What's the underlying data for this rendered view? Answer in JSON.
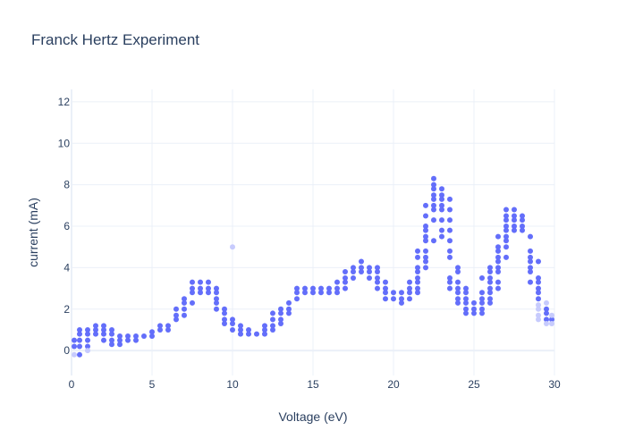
{
  "chart_data": {
    "type": "scatter",
    "title": "Franck Hertz Experiment",
    "xlabel": "Voltage (eV)",
    "ylabel": "current (mA)",
    "xlim": [
      0,
      30
    ],
    "ylim": [
      -1.2,
      12.6
    ],
    "xticks": [
      0,
      5,
      10,
      15,
      20,
      25,
      30
    ],
    "xtick_labels": [
      "0",
      "5",
      "10",
      "15",
      "20",
      "25",
      "30"
    ],
    "yticks": [
      0,
      2,
      4,
      6,
      8,
      10,
      12
    ],
    "ytick_labels": [
      "0",
      "2",
      "4",
      "6",
      "8",
      "10",
      "12"
    ],
    "grid": true,
    "legend": "none",
    "marker_color": "#636efa",
    "faded_marker_color": "#c7cbfd",
    "series": [
      {
        "points": [
          [
            0,
            0.2
          ],
          [
            0,
            0.5
          ],
          [
            0.5,
            -0.2
          ],
          [
            0.5,
            0.2
          ],
          [
            0.5,
            0.5
          ],
          [
            0.5,
            0.8
          ],
          [
            0.5,
            1.0
          ],
          [
            1,
            0.2
          ],
          [
            1,
            0.5
          ],
          [
            1,
            0.8
          ],
          [
            1,
            1.0
          ],
          [
            1.5,
            0.8
          ],
          [
            1.5,
            1.0
          ],
          [
            1.5,
            1.2
          ],
          [
            2,
            0.5
          ],
          [
            2,
            0.8
          ],
          [
            2,
            1.0
          ],
          [
            2,
            1.2
          ],
          [
            2.5,
            0.3
          ],
          [
            2.5,
            0.5
          ],
          [
            2.5,
            0.8
          ],
          [
            2.5,
            1.0
          ],
          [
            3,
            0.3
          ],
          [
            3,
            0.5
          ],
          [
            3,
            0.7
          ],
          [
            3.5,
            0.5
          ],
          [
            3.5,
            0.7
          ],
          [
            4,
            0.5
          ],
          [
            4,
            0.7
          ],
          [
            4.5,
            0.7
          ],
          [
            5,
            0.7
          ],
          [
            5,
            0.9
          ],
          [
            5.5,
            1.0
          ],
          [
            5.5,
            1.2
          ],
          [
            6,
            1.0
          ],
          [
            6,
            1.2
          ],
          [
            6.5,
            1.5
          ],
          [
            6.5,
            1.7
          ],
          [
            6.5,
            2.0
          ],
          [
            7,
            1.7
          ],
          [
            7,
            2.0
          ],
          [
            7,
            2.3
          ],
          [
            7,
            2.5
          ],
          [
            7.5,
            2.3
          ],
          [
            7.5,
            2.8
          ],
          [
            7.5,
            3.0
          ],
          [
            7.5,
            3.3
          ],
          [
            8,
            2.8
          ],
          [
            8,
            3.0
          ],
          [
            8,
            3.3
          ],
          [
            8.5,
            2.8
          ],
          [
            8.5,
            3.0
          ],
          [
            8.5,
            3.3
          ],
          [
            9,
            2.0
          ],
          [
            9,
            2.3
          ],
          [
            9,
            2.5
          ],
          [
            9,
            2.8
          ],
          [
            9,
            3.0
          ],
          [
            9.5,
            1.3
          ],
          [
            9.5,
            1.5
          ],
          [
            9.5,
            1.8
          ],
          [
            9.5,
            2.0
          ],
          [
            10,
            1.0
          ],
          [
            10,
            1.3
          ],
          [
            10,
            1.5
          ],
          [
            10.5,
            0.8
          ],
          [
            10.5,
            1.0
          ],
          [
            10.5,
            1.2
          ],
          [
            11,
            0.8
          ],
          [
            11,
            1.0
          ],
          [
            11.5,
            0.8
          ],
          [
            12,
            0.8
          ],
          [
            12,
            1.0
          ],
          [
            12,
            1.2
          ],
          [
            12.5,
            1.0
          ],
          [
            12.5,
            1.2
          ],
          [
            12.5,
            1.5
          ],
          [
            12.5,
            1.8
          ],
          [
            13,
            1.3
          ],
          [
            13,
            1.5
          ],
          [
            13,
            1.8
          ],
          [
            13,
            2.0
          ],
          [
            13.5,
            1.8
          ],
          [
            13.5,
            2.0
          ],
          [
            13.5,
            2.3
          ],
          [
            14,
            2.5
          ],
          [
            14,
            2.8
          ],
          [
            14,
            3.0
          ],
          [
            14.5,
            2.8
          ],
          [
            14.5,
            3.0
          ],
          [
            15,
            2.8
          ],
          [
            15,
            3.0
          ],
          [
            15.5,
            2.8
          ],
          [
            15.5,
            3.0
          ],
          [
            16,
            2.8
          ],
          [
            16,
            3.0
          ],
          [
            16.5,
            2.8
          ],
          [
            16.5,
            3.0
          ],
          [
            16.5,
            3.3
          ],
          [
            17,
            3.0
          ],
          [
            17,
            3.3
          ],
          [
            17,
            3.5
          ],
          [
            17,
            3.8
          ],
          [
            17.5,
            3.5
          ],
          [
            17.5,
            3.8
          ],
          [
            17.5,
            4.0
          ],
          [
            18,
            3.8
          ],
          [
            18,
            4.0
          ],
          [
            18,
            4.3
          ],
          [
            18.5,
            3.5
          ],
          [
            18.5,
            3.8
          ],
          [
            18.5,
            4.0
          ],
          [
            19,
            3.0
          ],
          [
            19,
            3.3
          ],
          [
            19,
            3.5
          ],
          [
            19,
            3.8
          ],
          [
            19,
            4.0
          ],
          [
            19.5,
            2.5
          ],
          [
            19.5,
            2.8
          ],
          [
            19.5,
            3.0
          ],
          [
            19.5,
            3.3
          ],
          [
            20,
            2.5
          ],
          [
            20,
            2.8
          ],
          [
            20.5,
            2.3
          ],
          [
            20.5,
            2.5
          ],
          [
            20.5,
            2.8
          ],
          [
            21,
            2.5
          ],
          [
            21,
            2.8
          ],
          [
            21,
            3.0
          ],
          [
            21,
            3.3
          ],
          [
            21.5,
            2.8
          ],
          [
            21.5,
            3.0
          ],
          [
            21.5,
            3.3
          ],
          [
            21.5,
            3.5
          ],
          [
            21.5,
            3.8
          ],
          [
            21.5,
            4.0
          ],
          [
            21.5,
            4.5
          ],
          [
            21.5,
            4.8
          ],
          [
            22,
            4.0
          ],
          [
            22,
            4.3
          ],
          [
            22,
            4.5
          ],
          [
            22,
            4.8
          ],
          [
            22,
            5.3
          ],
          [
            22,
            5.5
          ],
          [
            22,
            5.8
          ],
          [
            22,
            6.0
          ],
          [
            22,
            6.5
          ],
          [
            22,
            7.0
          ],
          [
            22.5,
            5.3
          ],
          [
            22.5,
            6.3
          ],
          [
            22.5,
            6.8
          ],
          [
            22.5,
            7.0
          ],
          [
            22.5,
            7.3
          ],
          [
            22.5,
            7.5
          ],
          [
            22.5,
            7.8
          ],
          [
            22.5,
            8.0
          ],
          [
            22.5,
            8.3
          ],
          [
            23,
            5.5
          ],
          [
            23,
            5.8
          ],
          [
            23,
            6.3
          ],
          [
            23,
            6.8
          ],
          [
            23,
            7.0
          ],
          [
            23,
            7.3
          ],
          [
            23,
            7.5
          ],
          [
            23,
            7.8
          ],
          [
            23.5,
            3.0
          ],
          [
            23.5,
            3.3
          ],
          [
            23.5,
            3.5
          ],
          [
            23.5,
            4.5
          ],
          [
            23.5,
            4.8
          ],
          [
            23.5,
            5.3
          ],
          [
            23.5,
            5.8
          ],
          [
            23.5,
            6.3
          ],
          [
            23.5,
            6.8
          ],
          [
            23.5,
            7.3
          ],
          [
            24,
            2.3
          ],
          [
            24,
            2.5
          ],
          [
            24,
            2.8
          ],
          [
            24,
            3.0
          ],
          [
            24,
            3.3
          ],
          [
            24,
            3.8
          ],
          [
            24,
            4.0
          ],
          [
            24.5,
            1.8
          ],
          [
            24.5,
            2.0
          ],
          [
            24.5,
            2.3
          ],
          [
            24.5,
            2.5
          ],
          [
            24.5,
            2.8
          ],
          [
            24.5,
            3.0
          ],
          [
            25,
            1.8
          ],
          [
            25,
            2.0
          ],
          [
            25,
            2.3
          ],
          [
            25.5,
            1.8
          ],
          [
            25.5,
            2.0
          ],
          [
            25.5,
            2.3
          ],
          [
            25.5,
            2.5
          ],
          [
            25.5,
            2.8
          ],
          [
            25.5,
            3.5
          ],
          [
            26,
            2.3
          ],
          [
            26,
            2.5
          ],
          [
            26,
            2.8
          ],
          [
            26,
            3.0
          ],
          [
            26,
            3.3
          ],
          [
            26,
            3.5
          ],
          [
            26,
            3.8
          ],
          [
            26,
            4.0
          ],
          [
            26.5,
            3.0
          ],
          [
            26.5,
            3.3
          ],
          [
            26.5,
            3.8
          ],
          [
            26.5,
            4.0
          ],
          [
            26.5,
            4.3
          ],
          [
            26.5,
            4.5
          ],
          [
            26.5,
            4.8
          ],
          [
            26.5,
            5.0
          ],
          [
            26.5,
            5.5
          ],
          [
            27,
            4.5
          ],
          [
            27,
            5.0
          ],
          [
            27,
            5.3
          ],
          [
            27,
            5.5
          ],
          [
            27,
            5.8
          ],
          [
            27,
            6.0
          ],
          [
            27,
            6.3
          ],
          [
            27,
            6.5
          ],
          [
            27,
            6.8
          ],
          [
            27.5,
            5.8
          ],
          [
            27.5,
            6.0
          ],
          [
            27.5,
            6.3
          ],
          [
            27.5,
            6.5
          ],
          [
            27.5,
            6.8
          ],
          [
            28,
            5.8
          ],
          [
            28,
            6.0
          ],
          [
            28,
            6.3
          ],
          [
            28,
            6.5
          ],
          [
            28.5,
            3.3
          ],
          [
            28.5,
            3.8
          ],
          [
            28.5,
            4.0
          ],
          [
            28.5,
            4.3
          ],
          [
            28.5,
            4.5
          ],
          [
            28.5,
            4.8
          ],
          [
            28.5,
            5.5
          ],
          [
            29,
            2.5
          ],
          [
            29,
            2.8
          ],
          [
            29,
            3.0
          ],
          [
            29,
            3.3
          ],
          [
            29,
            3.5
          ],
          [
            29,
            4.3
          ],
          [
            29.5,
            1.5
          ],
          [
            29.5,
            1.8
          ],
          [
            29.5,
            2.0
          ],
          [
            30,
            1.5
          ]
        ]
      },
      {
        "points": [
          [
            0,
            -0.2
          ],
          [
            1,
            0
          ],
          [
            10,
            5
          ],
          [
            29,
            1.5
          ],
          [
            29,
            1.7
          ],
          [
            29,
            2.0
          ],
          [
            29,
            2.2
          ],
          [
            29.5,
            1.3
          ],
          [
            29.5,
            2.3
          ],
          [
            30,
            1.3
          ],
          [
            30,
            1.7
          ]
        ]
      }
    ]
  }
}
